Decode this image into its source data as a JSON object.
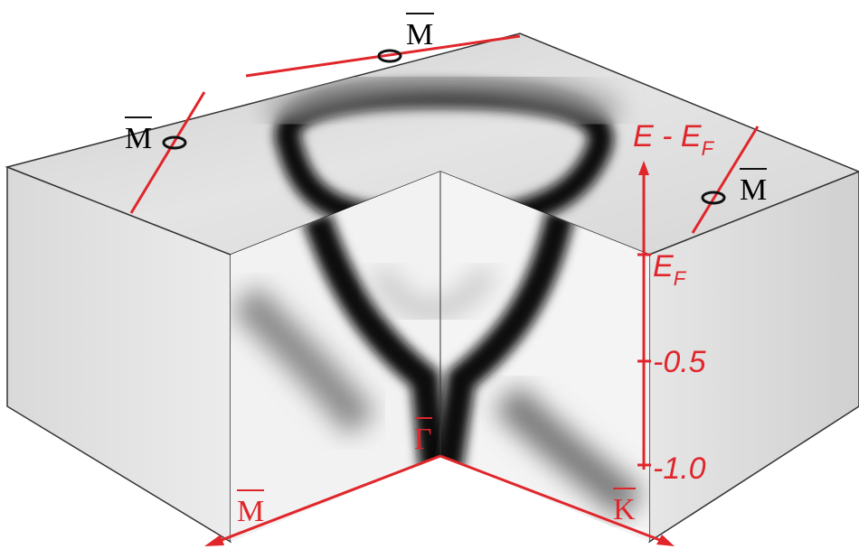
{
  "points": {
    "m_top": "M",
    "m_left": "M",
    "m_right": "M",
    "m_bottom": "M",
    "gamma": "Γ",
    "k": "K"
  },
  "energy_axis": {
    "title": "E - E",
    "title_sub": "F",
    "fermi": "E",
    "fermi_sub": "F",
    "ticks": [
      "-0.5",
      "-1.0"
    ]
  }
}
